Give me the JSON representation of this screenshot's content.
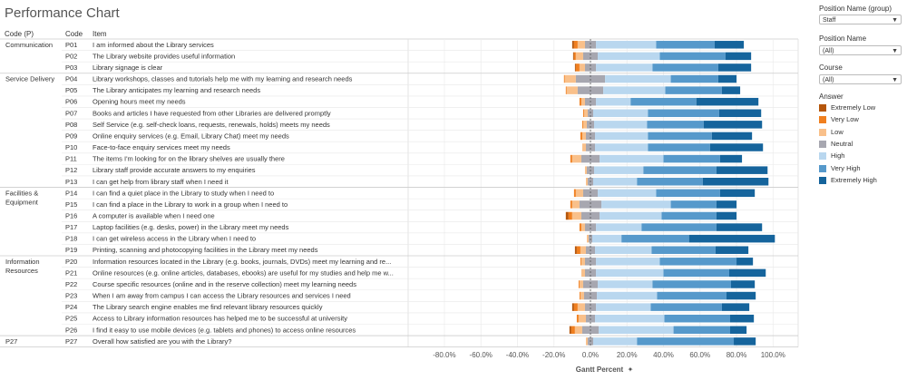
{
  "title": "Performance Chart",
  "headers": {
    "group": "Code (P)",
    "code": "Code",
    "item": "Item"
  },
  "filters": [
    {
      "label": "Position Name (group)",
      "value": "Staff"
    },
    {
      "label": "Position Name",
      "value": "(All)"
    },
    {
      "label": "Course",
      "value": "(All)"
    }
  ],
  "legend_title": "Answer",
  "colors": {
    "Extremely Low": "#b5560b",
    "Very Low": "#f07f1f",
    "Low": "#f9c08a",
    "Neutral": "#a7a7b0",
    "High": "#b9d7ef",
    "Very High": "#5699cb",
    "Extremely High": "#15649c"
  },
  "chart_data": {
    "type": "bar",
    "subtype": "diverging stacked bar (Gantt)",
    "xlabel": "Gantt Percent",
    "xlim": [
      -100,
      100
    ],
    "xticks": [
      "-80.0%",
      "-60.0%",
      "-40.0%",
      "-20.0%",
      "0.0%",
      "20.0%",
      "40.0%",
      "60.0%",
      "80.0%",
      "100.0%"
    ],
    "series_names": [
      "Extremely Low",
      "Very Low",
      "Low",
      "Neutral",
      "High",
      "Very High",
      "Extremely High"
    ],
    "groups": [
      "Communication",
      "Service Delivery",
      "Facilities & Equipment",
      "Information Resources",
      "P27"
    ],
    "rows": [
      {
        "group": "Communication",
        "code": "P01",
        "item": "I am informed about the Library services",
        "values": [
          1,
          2,
          4,
          6,
          33,
          32,
          16
        ]
      },
      {
        "group": "",
        "code": "P02",
        "item": "The Library website provides useful information",
        "values": [
          0.5,
          1,
          4,
          8,
          34,
          36,
          14
        ]
      },
      {
        "group": "",
        "code": "P03",
        "item": "Library signage is clear",
        "values": [
          0.5,
          2,
          3,
          6,
          31,
          36,
          18
        ]
      },
      {
        "group": "Service Delivery",
        "code": "P04",
        "item": "Library workshops, classes and tutorials help me with my learning and research needs",
        "values": [
          0,
          0.5,
          6,
          16,
          36,
          26,
          10
        ]
      },
      {
        "group": "",
        "code": "P05",
        "item": "The Library anticipates my learning and research needs",
        "values": [
          0,
          0.5,
          6,
          14,
          34,
          31,
          10
        ]
      },
      {
        "group": "",
        "code": "P06",
        "item": "Opening hours meet my needs",
        "values": [
          0,
          1,
          2,
          6,
          19,
          36,
          34
        ]
      },
      {
        "group": "",
        "code": "P07",
        "item": "Books and articles I have requested from other Libraries are delivered promptly",
        "values": [
          0,
          0.5,
          2,
          3,
          30,
          39,
          23
        ]
      },
      {
        "group": "",
        "code": "P08",
        "item": "Self Service (e.g. self-check loans, requests, renewals, holds) meets my needs",
        "values": [
          0,
          0.5,
          2,
          4,
          29,
          31,
          32
        ]
      },
      {
        "group": "",
        "code": "P09",
        "item": "Online enquiry services (e.g. Email, Library Chat) meet my needs",
        "values": [
          0,
          1,
          2,
          5,
          29,
          35,
          22
        ]
      },
      {
        "group": "",
        "code": "P10",
        "item": "Face-to-face enquiry services meet my needs",
        "values": [
          0,
          0,
          2,
          5,
          29,
          34,
          29
        ]
      },
      {
        "group": "",
        "code": "P11",
        "item": "The items I'm looking for on the library shelves are usually there",
        "values": [
          0,
          1,
          5,
          10,
          35,
          31,
          12
        ]
      },
      {
        "group": "",
        "code": "P12",
        "item": "Library staff provide accurate answers to my enquiries",
        "values": [
          0,
          0,
          1,
          4,
          27,
          40,
          28
        ]
      },
      {
        "group": "",
        "code": "P13",
        "item": "I can get help from library staff when I need it",
        "values": [
          0,
          0,
          1,
          3,
          24,
          36,
          36
        ]
      },
      {
        "group": "Facilities & Equipment",
        "code": "P14",
        "item": "I can find a quiet place in the Library to study when I need to",
        "values": [
          0,
          1,
          4,
          8,
          32,
          35,
          19
        ]
      },
      {
        "group": "",
        "code": "P15",
        "item": "I can find a place in the Library to work in a group when I need to",
        "values": [
          0,
          1,
          4,
          12,
          38,
          25,
          11
        ]
      },
      {
        "group": "",
        "code": "P16",
        "item": "A computer is available when I need one",
        "values": [
          1.5,
          2,
          5,
          10,
          34,
          30,
          11
        ]
      },
      {
        "group": "",
        "code": "P17",
        "item": "Laptop facilities (e.g. desks, power) in the Library meet my needs",
        "values": [
          0,
          1,
          2,
          6,
          25,
          41,
          25
        ]
      },
      {
        "group": "",
        "code": "P18",
        "item": "I can get wireless access in the Library when I need to",
        "values": [
          0,
          0,
          1,
          2,
          16,
          37,
          47
        ]
      },
      {
        "group": "",
        "code": "P19",
        "item": "Printing, scanning and photocopying facilities in the Library meet my needs",
        "values": [
          1,
          2,
          3,
          5,
          31,
          35,
          18
        ]
      },
      {
        "group": "Information Resources",
        "code": "P20",
        "item": "Information resources located in the Library (e.g. books, journals, DVDs) meet my learning and re...",
        "values": [
          0,
          0.5,
          2,
          6,
          35,
          42,
          9
        ]
      },
      {
        "group": "",
        "code": "P21",
        "item": "Online resources (e.g. online articles, databases, ebooks) are useful for my studies and help me w...",
        "values": [
          0,
          0,
          2,
          6,
          37,
          36,
          20
        ]
      },
      {
        "group": "",
        "code": "P22",
        "item": "Course specific resources (online and in the reserve collection) meet my learning needs",
        "values": [
          0,
          0.5,
          2,
          8,
          30,
          43,
          13
        ]
      },
      {
        "group": "",
        "code": "P23",
        "item": "When I am away from campus I can access the Library resources and services I need",
        "values": [
          0,
          0.5,
          2,
          7,
          33,
          38,
          16
        ]
      },
      {
        "group": "",
        "code": "P24",
        "item": "The Library search engine enables me find relevant library resources quickly",
        "values": [
          1,
          2,
          4,
          6,
          30,
          39,
          15
        ]
      },
      {
        "group": "",
        "code": "P25",
        "item": "Access to Library information resources has helped me to be successful at university",
        "values": [
          0,
          1,
          4,
          5,
          38,
          36,
          13
        ]
      },
      {
        "group": "",
        "code": "P26",
        "item": "I find it easy to use mobile devices (e.g. tablets and phones) to access online resources",
        "values": [
          1,
          2,
          4,
          9,
          41,
          31,
          9
        ]
      },
      {
        "group": "P27",
        "code": "P27",
        "item": "Overall how satisfied are you with the Library?",
        "values": [
          0,
          0,
          1,
          3,
          24,
          53,
          12
        ]
      }
    ]
  }
}
